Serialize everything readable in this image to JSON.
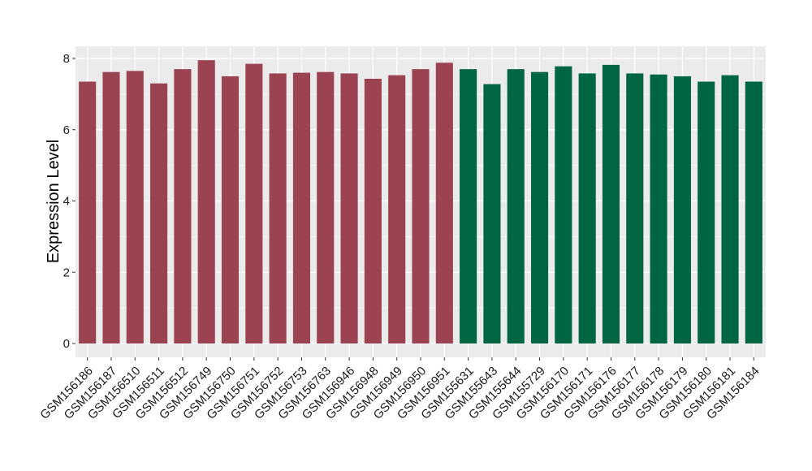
{
  "chart_data": {
    "type": "bar",
    "title": "",
    "xlabel": "",
    "ylabel": "Expression Level",
    "ylim": [
      0,
      8
    ],
    "yticks": [
      0,
      2,
      4,
      6,
      8
    ],
    "grid": true,
    "legend": "none",
    "categories": [
      "GSM156186",
      "GSM156187",
      "GSM156510",
      "GSM156511",
      "GSM156512",
      "GSM156749",
      "GSM156750",
      "GSM156751",
      "GSM156752",
      "GSM156753",
      "GSM156763",
      "GSM156946",
      "GSM156948",
      "GSM156949",
      "GSM156950",
      "GSM156951",
      "GSM155631",
      "GSM155643",
      "GSM155644",
      "GSM155729",
      "GSM156170",
      "GSM156171",
      "GSM156176",
      "GSM156177",
      "GSM156178",
      "GSM156179",
      "GSM156180",
      "GSM156181",
      "GSM156184"
    ],
    "values": [
      7.35,
      7.62,
      7.65,
      7.3,
      7.7,
      7.95,
      7.5,
      7.85,
      7.58,
      7.6,
      7.62,
      7.58,
      7.43,
      7.53,
      7.7,
      7.88,
      7.7,
      7.28,
      7.7,
      7.62,
      7.78,
      7.58,
      7.82,
      7.58,
      7.55,
      7.5,
      7.35,
      7.53,
      7.35
    ],
    "groups": [
      0,
      0,
      0,
      0,
      0,
      0,
      0,
      0,
      0,
      0,
      0,
      0,
      0,
      0,
      0,
      0,
      1,
      1,
      1,
      1,
      1,
      1,
      1,
      1,
      1,
      1,
      1,
      1,
      1
    ],
    "group_colors": [
      "#9b4350",
      "#006543"
    ],
    "panel_color": "#ebebeb",
    "grid_color": "#ffffff"
  }
}
